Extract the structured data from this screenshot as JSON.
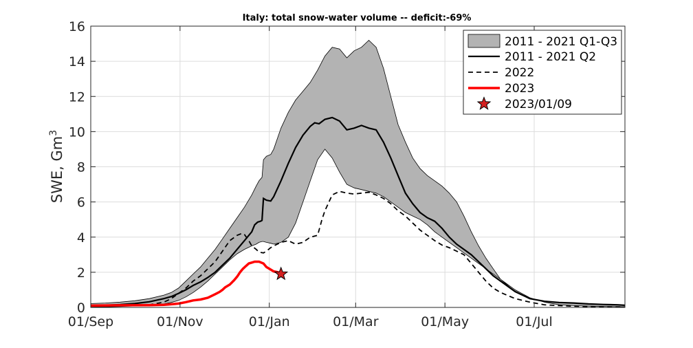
{
  "chart_data": {
    "type": "area",
    "title": "Italy: total snow-water volume -- deficit:-69%",
    "xlabel": "",
    "ylabel": "SWE, Gm",
    "ylabel_superscript": "3",
    "ylim": [
      0,
      16
    ],
    "yticks": [
      0,
      2,
      4,
      6,
      8,
      10,
      12,
      14,
      16
    ],
    "xticks": [
      "01/Sep",
      "01/Nov",
      "01/Jan",
      "01/Mar",
      "01/May",
      "01/Jul"
    ],
    "grid": true,
    "legend_position": "top-right",
    "x_units": "days since 01/Sep",
    "xlim": [
      0,
      365
    ],
    "colors": {
      "band": "#b3b3b3",
      "median": "#000000",
      "y2022": "#000000",
      "y2023": "#ff0000",
      "star": "#d42020"
    },
    "band": {
      "name": "2011 - 2021 Q1-Q3",
      "x": [
        0,
        10,
        20,
        30,
        40,
        50,
        55,
        60,
        65,
        70,
        75,
        80,
        85,
        90,
        95,
        100,
        105,
        110,
        113,
        115,
        117,
        118,
        120,
        123,
        125,
        130,
        135,
        140,
        145,
        150,
        155,
        160,
        165,
        170,
        175,
        180,
        185,
        190,
        195,
        200,
        205,
        210,
        215,
        220,
        225,
        230,
        235,
        240,
        245,
        250,
        255,
        260,
        265,
        270,
        275,
        280,
        290,
        300,
        310,
        320,
        330,
        340,
        350,
        360,
        365
      ],
      "q3": [
        0.22,
        0.25,
        0.3,
        0.38,
        0.5,
        0.7,
        0.85,
        1.1,
        1.5,
        1.9,
        2.3,
        2.8,
        3.3,
        3.9,
        4.5,
        5.1,
        5.7,
        6.4,
        6.9,
        7.2,
        7.4,
        8.4,
        8.6,
        8.7,
        9.0,
        10.2,
        11.1,
        11.8,
        12.3,
        12.8,
        13.5,
        14.3,
        14.8,
        14.7,
        14.2,
        14.6,
        14.8,
        15.2,
        14.8,
        13.6,
        12.0,
        10.4,
        9.4,
        8.5,
        7.9,
        7.5,
        7.2,
        6.9,
        6.5,
        6.0,
        5.2,
        4.3,
        3.5,
        2.8,
        2.2,
        1.6,
        0.9,
        0.5,
        0.35,
        0.28,
        0.25,
        0.2,
        0.17,
        0.15,
        0.14
      ],
      "q1": [
        0.02,
        0.03,
        0.05,
        0.08,
        0.12,
        0.2,
        0.28,
        0.4,
        0.6,
        0.85,
        1.15,
        1.5,
        1.9,
        2.3,
        2.7,
        3.05,
        3.3,
        3.5,
        3.6,
        3.7,
        3.75,
        3.75,
        3.7,
        3.65,
        3.6,
        3.7,
        4.0,
        4.8,
        6.0,
        7.2,
        8.4,
        9.0,
        8.5,
        7.7,
        7.0,
        6.8,
        6.7,
        6.6,
        6.5,
        6.3,
        6.0,
        5.7,
        5.4,
        5.2,
        5.0,
        4.7,
        4.3,
        4.0,
        3.7,
        3.4,
        3.1,
        2.8,
        2.5,
        2.2,
        1.9,
        1.6,
        1.0,
        0.55,
        0.3,
        0.15,
        0.1,
        0.07,
        0.05,
        0.04,
        0.03
      ]
    },
    "series": [
      {
        "name": "2011 - 2021 Q2",
        "style": "solid",
        "x": [
          0,
          10,
          20,
          30,
          40,
          50,
          55,
          60,
          65,
          70,
          75,
          80,
          85,
          90,
          95,
          100,
          105,
          110,
          112,
          114,
          116,
          117,
          118,
          120,
          123,
          125,
          130,
          135,
          140,
          145,
          150,
          153,
          156,
          160,
          165,
          170,
          175,
          180,
          185,
          190,
          195,
          200,
          205,
          210,
          215,
          220,
          225,
          230,
          235,
          240,
          245,
          250,
          255,
          260,
          265,
          270,
          275,
          280,
          290,
          300,
          310,
          320,
          330,
          340,
          350,
          360,
          365
        ],
        "values": [
          0.1,
          0.12,
          0.16,
          0.22,
          0.32,
          0.5,
          0.62,
          0.8,
          1.0,
          1.25,
          1.45,
          1.7,
          2.0,
          2.4,
          2.8,
          3.3,
          3.8,
          4.3,
          4.7,
          4.85,
          4.9,
          4.95,
          6.2,
          6.1,
          6.05,
          6.3,
          7.2,
          8.2,
          9.1,
          9.8,
          10.3,
          10.5,
          10.45,
          10.7,
          10.8,
          10.6,
          10.1,
          10.2,
          10.35,
          10.2,
          10.1,
          9.4,
          8.5,
          7.5,
          6.5,
          5.9,
          5.4,
          5.1,
          4.9,
          4.5,
          4.0,
          3.6,
          3.3,
          3.0,
          2.6,
          2.2,
          1.8,
          1.5,
          0.9,
          0.5,
          0.35,
          0.28,
          0.25,
          0.2,
          0.17,
          0.15,
          0.12
        ]
      },
      {
        "name": "2022",
        "style": "dashed",
        "x": [
          0,
          20,
          40,
          50,
          55,
          60,
          65,
          70,
          75,
          80,
          85,
          90,
          95,
          100,
          103,
          105,
          108,
          110,
          113,
          115,
          118,
          120,
          123,
          125,
          130,
          135,
          140,
          145,
          150,
          155,
          158,
          160,
          165,
          170,
          175,
          180,
          185,
          190,
          195,
          200,
          205,
          210,
          215,
          220,
          225,
          230,
          235,
          240,
          245,
          250,
          255,
          260,
          265,
          270,
          275,
          280,
          290,
          300,
          310,
          320,
          330,
          340,
          350,
          360,
          365
        ],
        "values": [
          0.1,
          0.1,
          0.15,
          0.3,
          0.5,
          0.8,
          1.1,
          1.5,
          1.8,
          2.2,
          2.6,
          3.2,
          3.8,
          4.1,
          4.2,
          4.15,
          3.8,
          3.5,
          3.3,
          3.15,
          3.1,
          3.2,
          3.4,
          3.5,
          3.7,
          3.8,
          3.6,
          3.7,
          4.0,
          4.1,
          5.0,
          5.5,
          6.4,
          6.6,
          6.5,
          6.45,
          6.5,
          6.55,
          6.4,
          6.2,
          5.9,
          5.5,
          5.2,
          4.8,
          4.4,
          4.1,
          3.8,
          3.55,
          3.4,
          3.2,
          3.0,
          2.5,
          2.0,
          1.5,
          1.1,
          0.85,
          0.5,
          0.3,
          0.15,
          0.1,
          0.07,
          0.05,
          0.04,
          0.03,
          0.02
        ]
      },
      {
        "name": "2023",
        "style": "solid-thick",
        "x": [
          0,
          20,
          40,
          50,
          55,
          60,
          65,
          70,
          75,
          80,
          85,
          88,
          90,
          92,
          95,
          98,
          100,
          102,
          104,
          106,
          108,
          110,
          112,
          115,
          118,
          120,
          123,
          125,
          128,
          130
        ],
        "values": [
          0.1,
          0.12,
          0.13,
          0.15,
          0.18,
          0.22,
          0.3,
          0.4,
          0.45,
          0.55,
          0.75,
          0.88,
          1.0,
          1.15,
          1.3,
          1.55,
          1.75,
          2.0,
          2.2,
          2.35,
          2.5,
          2.55,
          2.6,
          2.6,
          2.5,
          2.3,
          2.15,
          2.05,
          2.0,
          1.9
        ]
      }
    ],
    "marker": {
      "name": "2023/01/09",
      "x": 130,
      "y": 1.9,
      "shape": "star"
    }
  }
}
